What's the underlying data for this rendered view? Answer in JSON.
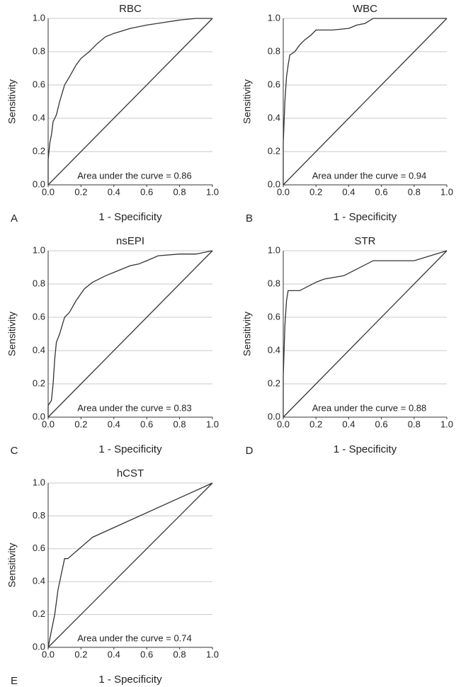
{
  "chart_data": [
    {
      "type": "line",
      "title": "RBC",
      "panel": "A",
      "xlabel": "1 - Specificity",
      "ylabel": "Sensitivity",
      "annotation": "Area under the curve = 0.86",
      "color": "#333333",
      "grid": true,
      "xlim": [
        0,
        1
      ],
      "ylim": [
        0,
        1
      ],
      "xticks": [
        {
          "value": 0,
          "label": "0.0"
        },
        {
          "value": 0.2,
          "label": "0.2"
        },
        {
          "value": 0.4,
          "label": "0.4"
        },
        {
          "value": 0.6,
          "label": "0.6"
        },
        {
          "value": 0.8,
          "label": "0.8"
        },
        {
          "value": 1,
          "label": "1.0"
        }
      ],
      "yticks": [
        {
          "value": 0,
          "label": "0.0"
        },
        {
          "value": 0.2,
          "label": "0.2"
        },
        {
          "value": 0.4,
          "label": "0.4"
        },
        {
          "value": 0.6,
          "label": "0.6"
        },
        {
          "value": 0.8,
          "label": "0.8"
        },
        {
          "value": 1,
          "label": "1.0"
        }
      ],
      "series": [
        {
          "x": [
            0,
            0,
            0.01,
            0.02,
            0.03,
            0.05,
            0.07,
            0.1,
            0.13,
            0.17,
            0.2,
            0.25,
            0.3,
            0.35,
            0.4,
            0.5,
            0.6,
            0.7,
            0.8,
            0.9,
            1
          ],
          "values": [
            0,
            0.15,
            0.25,
            0.3,
            0.38,
            0.42,
            0.5,
            0.6,
            0.65,
            0.72,
            0.76,
            0.8,
            0.85,
            0.89,
            0.91,
            0.94,
            0.96,
            0.975,
            0.99,
            1,
            1
          ]
        },
        {
          "x": [
            0,
            1
          ],
          "values": [
            0,
            1
          ]
        }
      ]
    },
    {
      "type": "line",
      "title": "WBC",
      "panel": "B",
      "xlabel": "1 - Specificity",
      "ylabel": "Sensitivity",
      "annotation": "Area under the curve = 0.94",
      "color": "#333333",
      "grid": true,
      "xlim": [
        0,
        1
      ],
      "ylim": [
        0,
        1
      ],
      "xticks": [
        {
          "value": 0,
          "label": "0.0"
        },
        {
          "value": 0.2,
          "label": "0.2"
        },
        {
          "value": 0.4,
          "label": "0.4"
        },
        {
          "value": 0.6,
          "label": "0.6"
        },
        {
          "value": 0.8,
          "label": "0.8"
        },
        {
          "value": 1,
          "label": "1.0"
        }
      ],
      "yticks": [
        {
          "value": 0,
          "label": "0.0"
        },
        {
          "value": 0.2,
          "label": "0.2"
        },
        {
          "value": 0.4,
          "label": "0.4"
        },
        {
          "value": 0.6,
          "label": "0.6"
        },
        {
          "value": 0.8,
          "label": "0.8"
        },
        {
          "value": 1,
          "label": "1.0"
        }
      ],
      "series": [
        {
          "x": [
            0,
            0,
            0.01,
            0.02,
            0.03,
            0.04,
            0.07,
            0.1,
            0.13,
            0.17,
            0.2,
            0.3,
            0.4,
            0.45,
            0.5,
            0.55,
            1
          ],
          "values": [
            0,
            0.25,
            0.5,
            0.65,
            0.72,
            0.78,
            0.8,
            0.84,
            0.87,
            0.9,
            0.93,
            0.93,
            0.94,
            0.96,
            0.97,
            1,
            1
          ]
        },
        {
          "x": [
            0,
            1
          ],
          "values": [
            0,
            1
          ]
        }
      ]
    },
    {
      "type": "line",
      "title": "nsEPI",
      "panel": "C",
      "xlabel": "1 - Specificity",
      "ylabel": "Sensitivity",
      "annotation": "Area under the curve = 0.83",
      "color": "#333333",
      "grid": true,
      "xlim": [
        0,
        1
      ],
      "ylim": [
        0,
        1
      ],
      "xticks": [
        {
          "value": 0,
          "label": "0.0"
        },
        {
          "value": 0.2,
          "label": "0.2"
        },
        {
          "value": 0.4,
          "label": "0.4"
        },
        {
          "value": 0.6,
          "label": "0.6"
        },
        {
          "value": 0.8,
          "label": "0.8"
        },
        {
          "value": 1,
          "label": "1.0"
        }
      ],
      "yticks": [
        {
          "value": 0,
          "label": "0.0"
        },
        {
          "value": 0.2,
          "label": "0.2"
        },
        {
          "value": 0.4,
          "label": "0.4"
        },
        {
          "value": 0.6,
          "label": "0.6"
        },
        {
          "value": 0.8,
          "label": "0.8"
        },
        {
          "value": 1,
          "label": "1.0"
        }
      ],
      "series": [
        {
          "x": [
            0,
            0,
            0.02,
            0.03,
            0.04,
            0.05,
            0.07,
            0.1,
            0.13,
            0.17,
            0.22,
            0.27,
            0.35,
            0.4,
            0.5,
            0.55,
            0.6,
            0.67,
            0.8,
            0.9,
            1
          ],
          "values": [
            0,
            0.07,
            0.1,
            0.2,
            0.35,
            0.45,
            0.5,
            0.6,
            0.63,
            0.7,
            0.77,
            0.81,
            0.85,
            0.87,
            0.91,
            0.92,
            0.94,
            0.97,
            0.98,
            0.98,
            1
          ]
        },
        {
          "x": [
            0,
            1
          ],
          "values": [
            0,
            1
          ]
        }
      ]
    },
    {
      "type": "line",
      "title": "STR",
      "panel": "D",
      "xlabel": "1 - Specificity",
      "ylabel": "Sensitivity",
      "annotation": "Area under the curve = 0.88",
      "color": "#333333",
      "grid": true,
      "xlim": [
        0,
        1
      ],
      "ylim": [
        0,
        1
      ],
      "xticks": [
        {
          "value": 0,
          "label": "0.0"
        },
        {
          "value": 0.2,
          "label": "0.2"
        },
        {
          "value": 0.4,
          "label": "0.4"
        },
        {
          "value": 0.6,
          "label": "0.6"
        },
        {
          "value": 0.8,
          "label": "0.8"
        },
        {
          "value": 1,
          "label": "1.0"
        }
      ],
      "yticks": [
        {
          "value": 0,
          "label": "0.0"
        },
        {
          "value": 0.2,
          "label": "0.2"
        },
        {
          "value": 0.4,
          "label": "0.4"
        },
        {
          "value": 0.6,
          "label": "0.6"
        },
        {
          "value": 0.8,
          "label": "0.8"
        },
        {
          "value": 1,
          "label": "1.0"
        }
      ],
      "series": [
        {
          "x": [
            0,
            0,
            0.01,
            0.02,
            0.03,
            0.1,
            0.2,
            0.25,
            0.37,
            0.55,
            0.8,
            1
          ],
          "values": [
            0,
            0.24,
            0.55,
            0.7,
            0.76,
            0.76,
            0.81,
            0.83,
            0.85,
            0.94,
            0.94,
            1
          ]
        },
        {
          "x": [
            0,
            1
          ],
          "values": [
            0,
            1
          ]
        }
      ]
    },
    {
      "type": "line",
      "title": "hCST",
      "panel": "E",
      "xlabel": "1 - Specificity",
      "ylabel": "Sensitivity",
      "annotation": "Area under the curve = 0.74",
      "color": "#333333",
      "grid": true,
      "xlim": [
        0,
        1
      ],
      "ylim": [
        0,
        1
      ],
      "xticks": [
        {
          "value": 0,
          "label": "0.0"
        },
        {
          "value": 0.2,
          "label": "0.2"
        },
        {
          "value": 0.4,
          "label": "0.4"
        },
        {
          "value": 0.6,
          "label": "0.6"
        },
        {
          "value": 0.8,
          "label": "0.8"
        },
        {
          "value": 1,
          "label": "1.0"
        }
      ],
      "yticks": [
        {
          "value": 0,
          "label": "0.0"
        },
        {
          "value": 0.2,
          "label": "0.2"
        },
        {
          "value": 0.4,
          "label": "0.4"
        },
        {
          "value": 0.6,
          "label": "0.6"
        },
        {
          "value": 0.8,
          "label": "0.8"
        },
        {
          "value": 1,
          "label": "1.0"
        }
      ],
      "series": [
        {
          "x": [
            0,
            0.02,
            0.04,
            0.06,
            0.1,
            0.12,
            0.27,
            1
          ],
          "values": [
            0,
            0.1,
            0.2,
            0.35,
            0.54,
            0.54,
            0.67,
            1
          ]
        },
        {
          "x": [
            0,
            1
          ],
          "values": [
            0,
            1
          ]
        }
      ]
    }
  ]
}
